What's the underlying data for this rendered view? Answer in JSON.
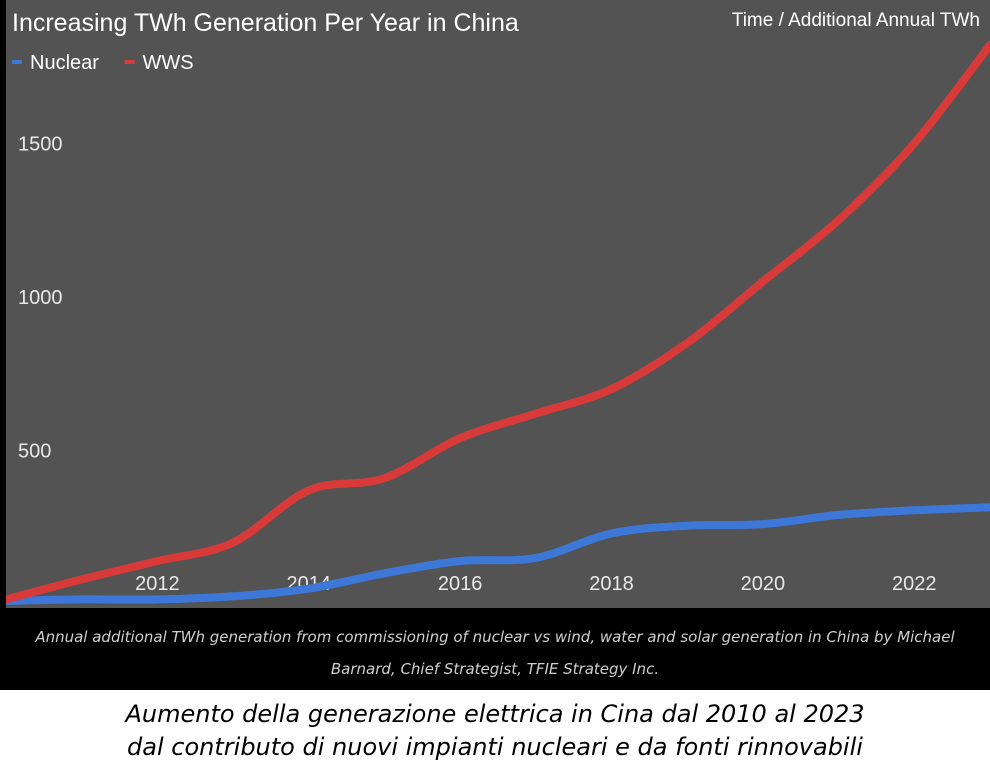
{
  "chart_data": {
    "type": "line",
    "title": "Increasing TWh Generation Per Year in China",
    "corner_label": "Time / Additional Annual TWh",
    "x": [
      2010,
      2011,
      2012,
      2013,
      2014,
      2015,
      2016,
      2017,
      2018,
      2019,
      2020,
      2021,
      2022,
      2023
    ],
    "x_ticks": [
      2012,
      2014,
      2016,
      2018,
      2020,
      2022
    ],
    "xlim": [
      2010,
      2023
    ],
    "y_ticks": [
      500,
      1000,
      1500
    ],
    "ylim": [
      0,
      1820
    ],
    "series": [
      {
        "name": "Nuclear",
        "color": "#3d78d8",
        "values": [
          10,
          15,
          15,
          25,
          50,
          100,
          140,
          150,
          230,
          255,
          260,
          290,
          305,
          315
        ]
      },
      {
        "name": "WWS",
        "color": "#d83a3a",
        "values": [
          15,
          80,
          140,
          200,
          370,
          410,
          540,
          620,
          700,
          850,
          1050,
          1250,
          1500,
          1820
        ]
      }
    ],
    "legend_position": "top-left",
    "grid": false
  },
  "credit": {
    "line1": "Annual additional TWh generation from commissioning of nuclear vs wind, water and solar generation in China by Michael",
    "line2": "Barnard, Chief Strategist, TFIE Strategy Inc."
  },
  "caption": {
    "line1": "Aumento della generazione elettrica in Cina dal 2010 al 2023",
    "line2": "dal contributo di nuovi impianti nucleari e da fonti rinnovabili"
  }
}
